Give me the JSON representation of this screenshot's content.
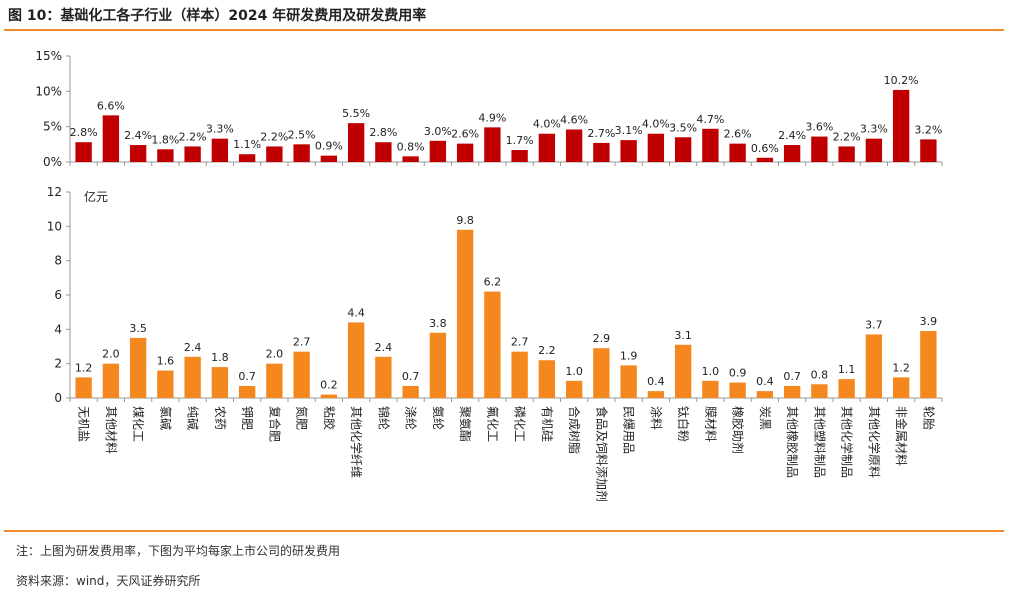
{
  "title": "图 10：基础化工各子行业（样本）2024 年研发费用及研发费用率",
  "note": "注：上图为研发费用率，下图为平均每家上市公司的研发费用",
  "source": "资料来源：wind，天风证券研究所",
  "colors": {
    "rate_bar": "#c00000",
    "amount_bar": "#f5871f",
    "rule": "#f08a2c",
    "axis": "#999999"
  },
  "chart_data": [
    {
      "type": "bar",
      "title": "研发费用率",
      "ylabel": "",
      "ylim": [
        0,
        15
      ],
      "yticks": [
        "0%",
        "5%",
        "10%",
        "15%"
      ],
      "categories": [
        "无机盐",
        "其他材料",
        "煤化工",
        "氯碱",
        "纯碱",
        "农药",
        "钾肥",
        "复合肥",
        "氮肥",
        "粘胶",
        "其他化学纤维",
        "锦纶",
        "涤纶",
        "氨纶",
        "聚氨酯",
        "氟化工",
        "磷化工",
        "有机硅",
        "合成树脂",
        "食品及饲料添加剂",
        "民爆用品",
        "涂料",
        "钛白粉",
        "膜材料",
        "橡胶助剂",
        "炭黑",
        "其他橡胶制品",
        "其他塑料制品",
        "其他化学制品",
        "其他化学原料",
        "非金属材料",
        "轮胎"
      ],
      "values": [
        2.8,
        6.6,
        2.4,
        1.8,
        2.2,
        3.3,
        1.1,
        2.2,
        2.5,
        0.9,
        5.5,
        2.8,
        0.8,
        3.0,
        2.6,
        4.9,
        1.7,
        4.0,
        4.6,
        2.7,
        3.1,
        4.0,
        3.5,
        4.7,
        2.6,
        0.6,
        2.4,
        3.6,
        2.2,
        3.3,
        10.2,
        3.2
      ],
      "labels": [
        "2.8%",
        "6.6%",
        "2.4%",
        "1.8%",
        "2.2%",
        "3.3%",
        "1.1%",
        "2.2%",
        "2.5%",
        "0.9%",
        "5.5%",
        "2.8%",
        "0.8%",
        "3.0%",
        "2.6%",
        "4.9%",
        "1.7%",
        "4.0%",
        "4.6%",
        "2.7%",
        "3.1%",
        "4.0%",
        "3.5%",
        "4.7%",
        "2.6%",
        "0.6%",
        "2.4%",
        "3.6%",
        "2.2%",
        "3.3%",
        "10.2%",
        "3.2%"
      ]
    },
    {
      "type": "bar",
      "title": "平均每家上市公司研发费用",
      "ylabel": "亿元",
      "ylim": [
        0,
        12
      ],
      "yticks": [
        "0",
        "2",
        "4",
        "6",
        "8",
        "10",
        "12"
      ],
      "categories": [
        "无机盐",
        "其他材料",
        "煤化工",
        "氯碱",
        "纯碱",
        "农药",
        "钾肥",
        "复合肥",
        "氮肥",
        "粘胶",
        "其他化学纤维",
        "锦纶",
        "涤纶",
        "氨纶",
        "聚氨酯",
        "氟化工",
        "磷化工",
        "有机硅",
        "合成树脂",
        "食品及饲料添加剂",
        "民爆用品",
        "涂料",
        "钛白粉",
        "膜材料",
        "橡胶助剂",
        "炭黑",
        "其他橡胶制品",
        "其他塑料制品",
        "其他化学制品",
        "其他化学原料",
        "非金属材料",
        "轮胎"
      ],
      "values": [
        1.2,
        2.0,
        3.5,
        1.6,
        2.4,
        1.8,
        0.7,
        2.0,
        2.7,
        0.2,
        4.4,
        2.4,
        0.7,
        3.8,
        9.8,
        6.2,
        2.7,
        2.2,
        1.0,
        2.9,
        1.9,
        0.4,
        3.1,
        1.0,
        0.9,
        0.4,
        0.7,
        0.8,
        1.1,
        3.7,
        1.2,
        3.9
      ],
      "labels": [
        "1.2",
        "2.0",
        "3.5",
        "1.6",
        "2.4",
        "1.8",
        "0.7",
        "2.0",
        "2.7",
        "0.2",
        "4.4",
        "2.4",
        "0.7",
        "3.8",
        "9.8",
        "6.2",
        "2.7",
        "2.2",
        "1.0",
        "2.9",
        "1.9",
        "0.4",
        "3.1",
        "1.0",
        "0.9",
        "0.4",
        "0.7",
        "0.8",
        "1.1",
        "3.7",
        "1.2",
        "3.9"
      ]
    }
  ]
}
